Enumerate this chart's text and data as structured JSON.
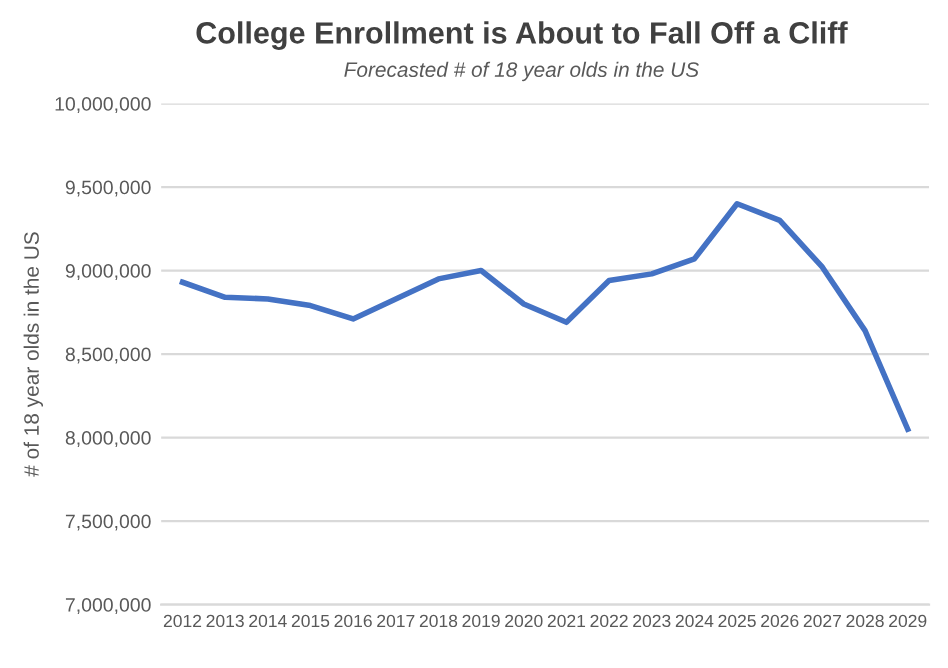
{
  "chart_data": {
    "type": "line",
    "title": "College Enrollment is About to Fall Off a Cliff",
    "subtitle": "Forecasted # of 18 year olds in the US",
    "ylabel": "# of 18 year olds in the US",
    "categories": [
      "2012",
      "2013",
      "2014",
      "2015",
      "2016",
      "2017",
      "2018",
      "2019",
      "2020",
      "2021",
      "2022",
      "2023",
      "2024",
      "2025",
      "2026",
      "2027",
      "2028",
      "2029"
    ],
    "series": [
      {
        "color": "#4472c4",
        "values": [
          8930000,
          8840000,
          8830000,
          8790000,
          8710000,
          8830000,
          8950000,
          9000000,
          8800000,
          8690000,
          8940000,
          8980000,
          9070000,
          9400000,
          9300000,
          9020000,
          8640000,
          8050000
        ]
      }
    ],
    "ylim": [
      7000000,
      10000000
    ],
    "yticks": [
      {
        "value": 7000000,
        "label": "7,000,000"
      },
      {
        "value": 7500000,
        "label": "7,500,000"
      },
      {
        "value": 8000000,
        "label": "8,000,000"
      },
      {
        "value": 8500000,
        "label": "8,500,000"
      },
      {
        "value": 9000000,
        "label": "9,000,000"
      },
      {
        "value": 9500000,
        "label": "9,500,000"
      },
      {
        "value": 10000000,
        "label": "10,000,000"
      }
    ],
    "grid": "y",
    "legend": false,
    "marker": "none",
    "line_style": "solid"
  }
}
